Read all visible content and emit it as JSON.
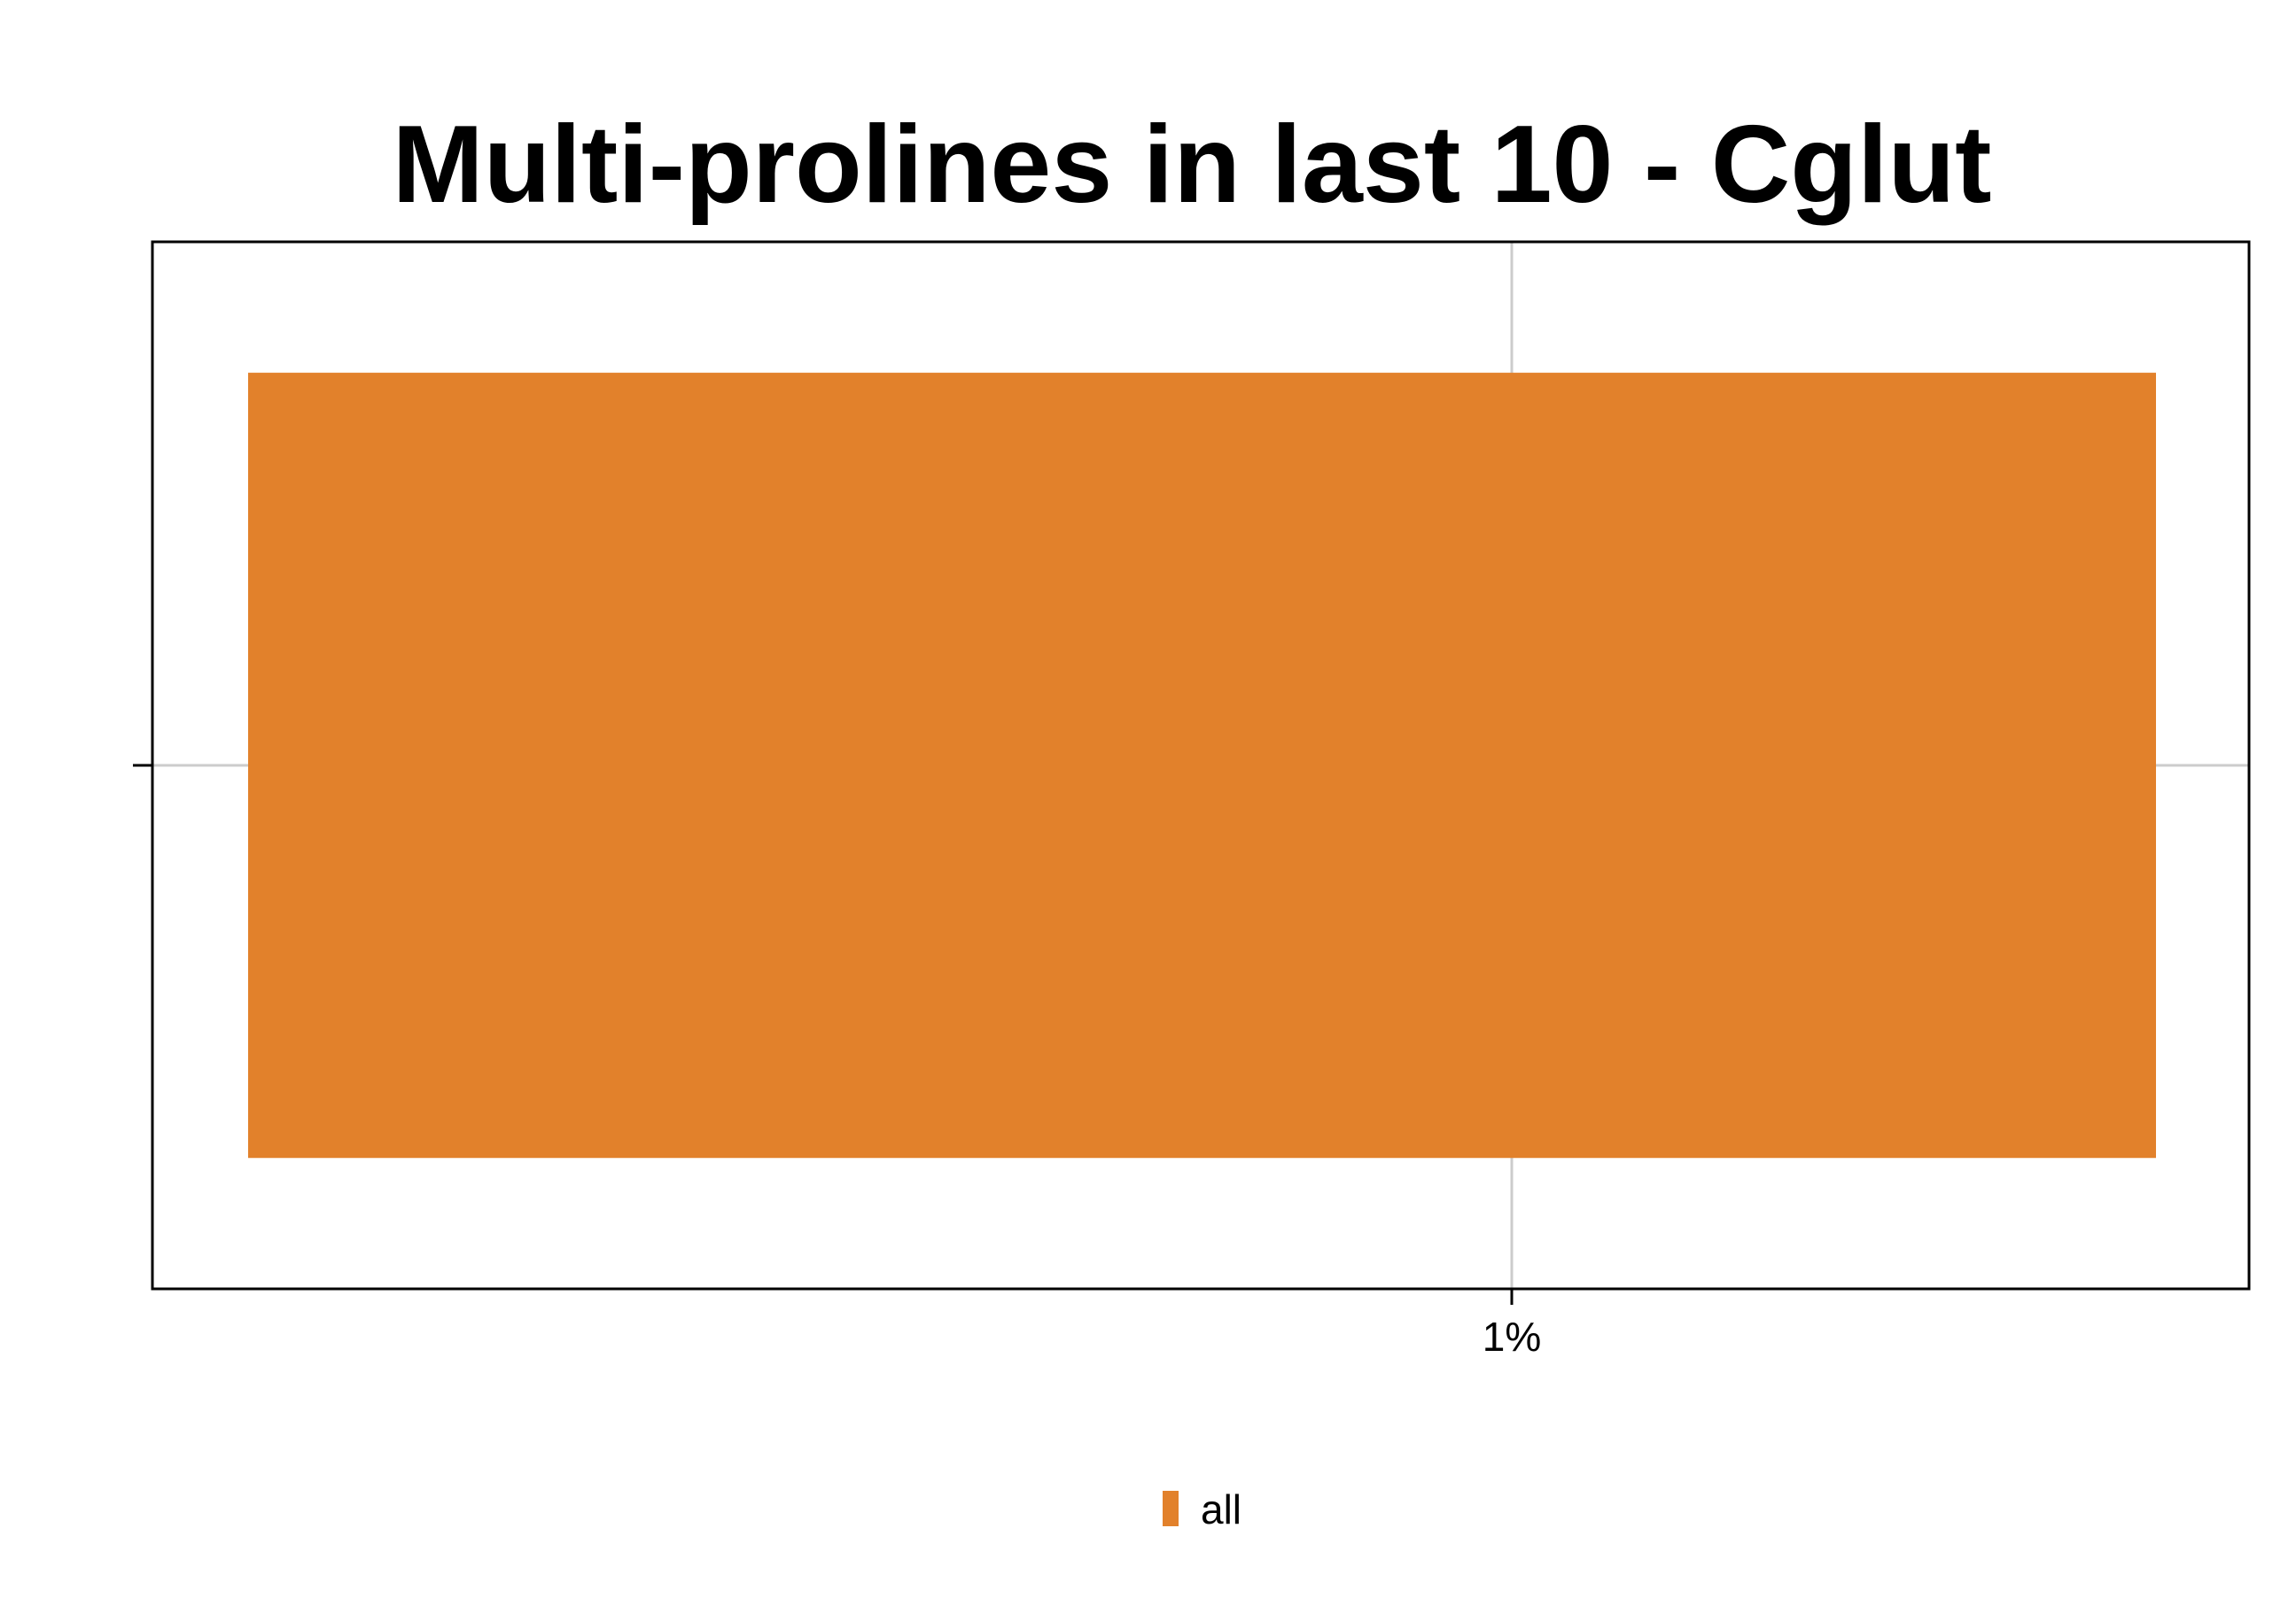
{
  "chart_data": {
    "type": "bar",
    "orientation": "horizontal",
    "title": "Multi-prolines in last 10 - Cglut",
    "xlabel": "",
    "ylabel": "",
    "categories": [
      ""
    ],
    "series": [
      {
        "name": "all",
        "values": [
          1.0
        ],
        "color": "#e2812b"
      }
    ],
    "x_ticks": [
      {
        "value": 1.0,
        "label": "1%"
      }
    ],
    "x_unit": "%",
    "grid": true,
    "legend_position": "bottom"
  }
}
